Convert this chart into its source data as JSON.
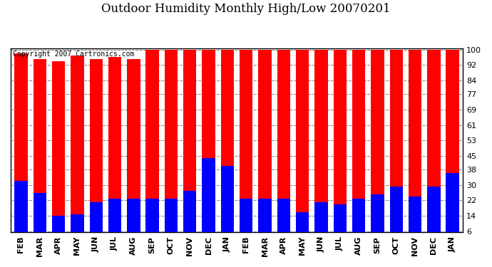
{
  "title": "Outdoor Humidity Monthly High/Low 20070201",
  "copyright": "Copyright 2007 Cartronics.com",
  "categories": [
    "FEB",
    "MAR",
    "APR",
    "MAY",
    "JUN",
    "JUL",
    "AUG",
    "SEP",
    "OCT",
    "NOV",
    "DEC",
    "JAN",
    "FEB",
    "MAR",
    "APR",
    "MAY",
    "JUN",
    "JUL",
    "AUG",
    "SEP",
    "OCT",
    "NOV",
    "DEC",
    "JAN"
  ],
  "high_values": [
    98,
    95,
    94,
    97,
    95,
    96,
    95,
    100,
    100,
    100,
    100,
    100,
    100,
    100,
    100,
    100,
    100,
    100,
    100,
    100,
    100,
    100,
    100,
    100
  ],
  "low_values": [
    32,
    26,
    14,
    15,
    21,
    23,
    23,
    23,
    23,
    27,
    44,
    40,
    23,
    23,
    23,
    16,
    21,
    20,
    23,
    25,
    29,
    24,
    29,
    36
  ],
  "high_color": "#ff0000",
  "low_color": "#0000ff",
  "bg_color": "#ffffff",
  "plot_bg_color": "#ffffff",
  "grid_color": "#808080",
  "yticks": [
    6,
    14,
    22,
    30,
    38,
    45,
    53,
    61,
    69,
    77,
    84,
    92,
    100
  ],
  "ymin": 6,
  "ymax": 100,
  "bar_width": 0.7,
  "title_fontsize": 12,
  "tick_fontsize": 8
}
